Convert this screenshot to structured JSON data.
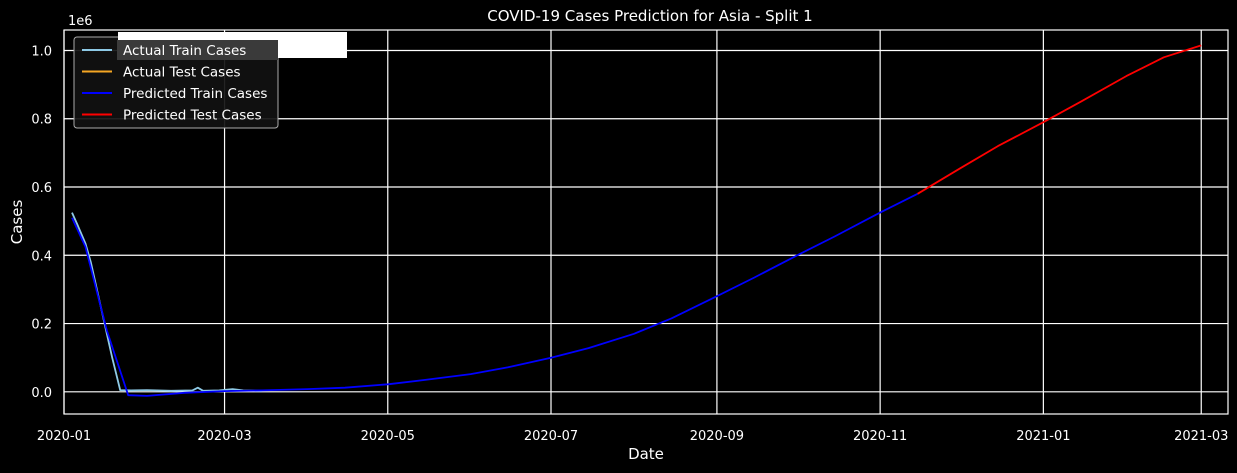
{
  "chart_data": {
    "type": "line",
    "title": "COVID-19 Cases Prediction for Asia - Split 1",
    "xlabel": "Date",
    "ylabel": "Cases",
    "y_offset_label": "1e6",
    "xlim": [
      "2020-01-01",
      "2021-03-11"
    ],
    "ylim": [
      -0.065,
      1.06
    ],
    "grid": true,
    "legend_position": "upper-left",
    "x_ticks": [
      "2020-01",
      "2020-03",
      "2020-05",
      "2020-07",
      "2020-09",
      "2020-11",
      "2021-01",
      "2021-03"
    ],
    "y_ticks": [
      "0.0",
      "0.2",
      "0.4",
      "0.6",
      "0.8",
      "1.0"
    ],
    "y_tick_values": [
      0.0,
      0.2,
      0.4,
      0.6,
      0.8,
      1.0
    ],
    "colors": {
      "background": "#000000",
      "grid": "#ffffff",
      "text": "#ffffff"
    },
    "series": [
      {
        "name": "Actual Train Cases",
        "color": "#8ecae6",
        "points": [
          [
            "2020-01-04",
            0.525
          ],
          [
            "2020-01-06",
            0.49
          ],
          [
            "2020-01-09",
            0.435
          ],
          [
            "2020-01-11",
            0.38
          ],
          [
            "2020-01-15",
            0.24
          ],
          [
            "2020-01-19",
            0.1
          ],
          [
            "2020-01-22",
            0.005
          ],
          [
            "2020-01-26",
            0.004
          ],
          [
            "2020-02-01",
            0.005
          ],
          [
            "2020-02-10",
            0.003
          ],
          [
            "2020-02-18",
            0.004
          ],
          [
            "2020-02-20",
            0.012
          ],
          [
            "2020-02-22",
            0.003
          ],
          [
            "2020-02-28",
            0.004
          ],
          [
            "2020-03-04",
            0.008
          ],
          [
            "2020-03-08",
            0.004
          ],
          [
            "2020-03-15",
            0.003
          ]
        ]
      },
      {
        "name": "Actual Test Cases",
        "color": "#f5a623",
        "points": []
      },
      {
        "name": "Predicted Train Cases",
        "color": "#0000ff",
        "points": [
          [
            "2020-01-04",
            0.51
          ],
          [
            "2020-01-09",
            0.425
          ],
          [
            "2020-01-17",
            0.18
          ],
          [
            "2020-01-25",
            -0.01
          ],
          [
            "2020-02-01",
            -0.012
          ],
          [
            "2020-02-15",
            -0.003
          ],
          [
            "2020-03-01",
            0.002
          ],
          [
            "2020-03-15",
            0.004
          ],
          [
            "2020-04-01",
            0.008
          ],
          [
            "2020-04-15",
            0.012
          ],
          [
            "2020-05-01",
            0.022
          ],
          [
            "2020-05-15",
            0.035
          ],
          [
            "2020-06-01",
            0.052
          ],
          [
            "2020-06-15",
            0.072
          ],
          [
            "2020-07-01",
            0.1
          ],
          [
            "2020-07-15",
            0.128
          ],
          [
            "2020-08-01",
            0.17
          ],
          [
            "2020-08-15",
            0.215
          ],
          [
            "2020-09-01",
            0.28
          ],
          [
            "2020-09-15",
            0.335
          ],
          [
            "2020-10-01",
            0.4
          ],
          [
            "2020-10-15",
            0.455
          ],
          [
            "2020-11-01",
            0.525
          ],
          [
            "2020-11-15",
            0.58
          ]
        ]
      },
      {
        "name": "Predicted Test Cases",
        "color": "#ff0000",
        "points": [
          [
            "2020-11-15",
            0.58
          ],
          [
            "2020-12-01",
            0.655
          ],
          [
            "2020-12-15",
            0.72
          ],
          [
            "2021-01-01",
            0.79
          ],
          [
            "2021-01-15",
            0.85
          ],
          [
            "2021-02-01",
            0.925
          ],
          [
            "2021-02-15",
            0.98
          ],
          [
            "2021-03-01",
            1.015
          ]
        ]
      }
    ]
  }
}
